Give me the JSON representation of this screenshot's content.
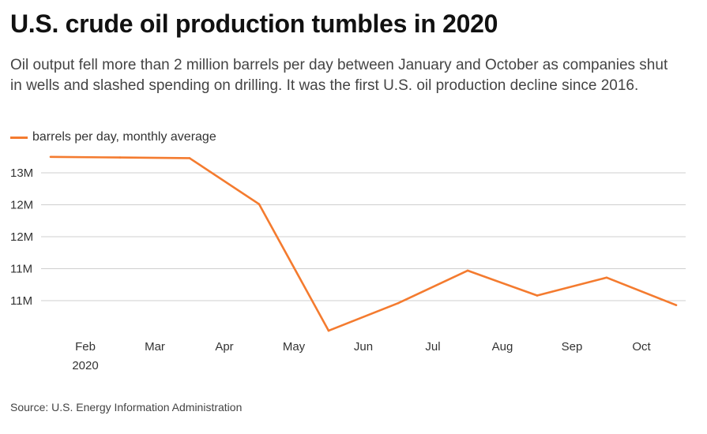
{
  "header": {
    "title": "U.S. crude oil production tumbles in 2020",
    "subtitle": "Oil output fell more than 2 million barrels per day between January and October as companies shut in wells and slashed spending on drilling. It was the first U.S. oil production decline since 2016."
  },
  "legend": {
    "label": "barrels per day, monthly average",
    "color": "#F47B2F"
  },
  "source": "Source: U.S. Energy Information Administration",
  "chart_data": {
    "type": "line",
    "title": "U.S. crude oil production tumbles in 2020",
    "xlabel": "",
    "ylabel": "",
    "x": [
      "2020-01",
      "2020-02",
      "2020-03",
      "2020-04",
      "2020-05",
      "2020-06",
      "2020-07",
      "2020-08",
      "2020-09",
      "2020-10"
    ],
    "x_tick_labels": [
      {
        "label": "Feb",
        "sublabel": "2020"
      },
      {
        "label": "Mar",
        "sublabel": ""
      },
      {
        "label": "Apr",
        "sublabel": ""
      },
      {
        "label": "May",
        "sublabel": ""
      },
      {
        "label": "Jun",
        "sublabel": ""
      },
      {
        "label": "Jul",
        "sublabel": ""
      },
      {
        "label": "Aug",
        "sublabel": ""
      },
      {
        "label": "Sep",
        "sublabel": ""
      },
      {
        "label": "Oct",
        "sublabel": ""
      }
    ],
    "y_ticks": [
      10500000,
      11000000,
      11500000,
      12000000,
      12500000
    ],
    "y_tick_labels": [
      "11M",
      "11M",
      "12M",
      "12M",
      "13M"
    ],
    "ylim": [
      10000000,
      12700000
    ],
    "grid": true,
    "legend_position": "top-left",
    "series": [
      {
        "name": "barrels per day, monthly average",
        "color": "#F47B2F",
        "values": [
          12750000,
          12740000,
          12730000,
          12010000,
          10030000,
          10460000,
          10970000,
          10580000,
          10860000,
          10430000
        ]
      }
    ]
  }
}
